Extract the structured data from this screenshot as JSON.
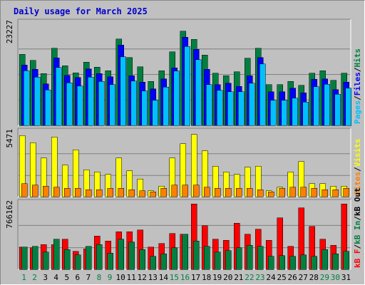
{
  "chart_data": {
    "type": "bar",
    "title": "Daily usage for March 2025",
    "x": [
      "1",
      "2",
      "3",
      "4",
      "5",
      "6",
      "7",
      "8",
      "9",
      "10",
      "11",
      "12",
      "13",
      "14",
      "15",
      "16",
      "17",
      "18",
      "19",
      "20",
      "21",
      "22",
      "23",
      "24",
      "25",
      "26",
      "27",
      "28",
      "29",
      "30",
      "31"
    ],
    "weekend_days": [
      "1",
      "2",
      "8",
      "9",
      "15",
      "16",
      "22",
      "23",
      "29",
      "30"
    ],
    "grid": true,
    "panels": [
      {
        "id": "hits-files-pages",
        "ymax_label": "23227",
        "ylim": [
          0,
          23227
        ],
        "legend": [
          "Pages",
          "/",
          "Files",
          "/",
          "Hits"
        ],
        "series": [
          {
            "name": "Hits",
            "color": "#008040",
            "values": [
              16200,
              14800,
              11800,
              17600,
              13600,
              12000,
              14400,
              13300,
              12500,
              19700,
              15500,
              13400,
              10000,
              12500,
              16800,
              21500,
              19600,
              16000,
              11900,
              11300,
              12200,
              15300,
              17600,
              9300,
              9300,
              10000,
              9100,
              11900,
              12500,
              10300,
              11900
            ]
          },
          {
            "name": "Files",
            "color": "#0000ff",
            "values": [
              13800,
              12800,
              9500,
              15400,
              11400,
              10900,
              12900,
              11800,
              11100,
              18300,
              11300,
              9900,
              8300,
              10600,
              13100,
              20100,
              17300,
              12800,
              9300,
              9600,
              8900,
              11300,
              15500,
              7700,
              7700,
              8500,
              7400,
              10500,
              10600,
              8200,
              9900
            ]
          },
          {
            "name": "Pages",
            "color": "#00c0ff",
            "values": [
              12500,
              11000,
              8100,
              13200,
              9700,
              9000,
              11000,
              10000,
              9300,
              15600,
              10100,
              7800,
              5700,
              8700,
              12400,
              18000,
              15000,
              9300,
              8000,
              7700,
              7700,
              9600,
              14000,
              5700,
              5700,
              6200,
              5300,
              8800,
              9400,
              7100,
              8500
            ]
          }
        ]
      },
      {
        "id": "visits-sites",
        "ymax_label": "5471",
        "ylim": [
          0,
          5471
        ],
        "legend": [
          "Sites",
          "/",
          "Visits"
        ],
        "series": [
          {
            "name": "Visits",
            "color": "#ffff00",
            "values": [
              5200,
              4600,
              3300,
              5100,
              2700,
              4000,
              2300,
              2100,
              1900,
              3300,
              2200,
              1500,
              500,
              900,
              3300,
              4500,
              5300,
              3900,
              2600,
              2100,
              1900,
              2500,
              2600,
              500,
              800,
              2100,
              3000,
              1100,
              1100,
              900,
              900
            ]
          },
          {
            "name": "Sites",
            "color": "#ff8000",
            "values": [
              1100,
              1000,
              900,
              800,
              700,
              700,
              600,
              600,
              700,
              700,
              600,
              500,
              400,
              700,
              1000,
              1000,
              1000,
              800,
              700,
              700,
              700,
              700,
              600,
              400,
              700,
              800,
              800,
              700,
              600,
              600,
              700
            ]
          }
        ]
      },
      {
        "id": "kb",
        "ymax_label": "766162",
        "ylim": [
          0,
          766162
        ],
        "legend": [
          "kB F",
          "/",
          "kB In",
          "/",
          "kB Out"
        ],
        "series": [
          {
            "name": "kB F",
            "color": "#ff0000",
            "values": [
              260000,
              250000,
              290000,
              290000,
              350000,
              210000,
              240000,
              390000,
              330000,
              440000,
              440000,
              460000,
              260000,
              300000,
              420000,
              410000,
              766000,
              510000,
              350000,
              340000,
              540000,
              410000,
              470000,
              340000,
              600000,
              270000,
              720000,
              500000,
              350000,
              280000,
              766000
            ]
          },
          {
            "name": "kB In",
            "color": "#008040",
            "values": [
              260000,
              270000,
              200000,
              350000,
              230000,
              170000,
              270000,
              290000,
              190000,
              350000,
              320000,
              230000,
              150000,
              180000,
              250000,
              410000,
              330000,
              270000,
              200000,
              220000,
              250000,
              280000,
              270000,
              150000,
              160000,
              150000,
              170000,
              150000,
              230000,
              180000,
              210000
            ]
          }
        ]
      }
    ]
  }
}
